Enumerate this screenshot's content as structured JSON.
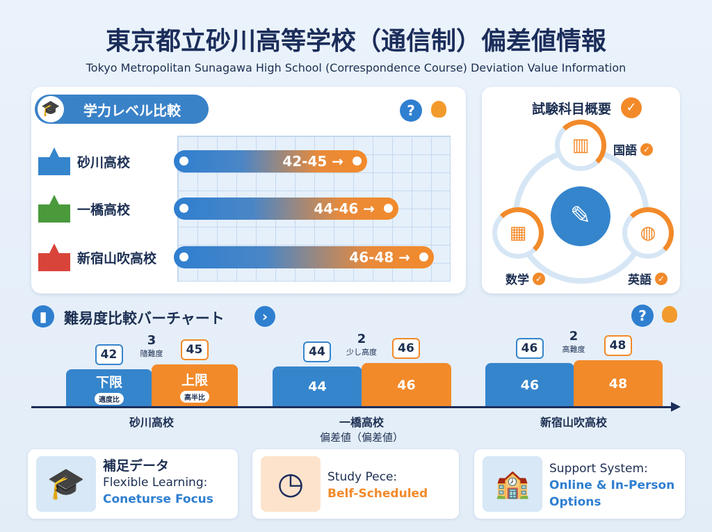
{
  "header": {
    "title": "東京都立砂川高等学校（通信制）偏差値情報",
    "subtitle": "Tokyo Metropolitan Sunagawa High School (Correspondence Course) Deviation Value Information"
  },
  "level_compare": {
    "title": "学力レベル比較",
    "help_icon": "question-icon",
    "tip_icon": "lightbulb-icon",
    "rows": [
      {
        "school": "砂川高校",
        "range": "42-45 →",
        "color": "#3585cc"
      },
      {
        "school": "一橋高校",
        "range": "44-46 →",
        "color": "#4a9a3c"
      },
      {
        "school": "新宿山吹高校",
        "range": "46-48 →",
        "color": "#d9443a"
      }
    ]
  },
  "subjects": {
    "title": "試験科目概要",
    "items": [
      {
        "name": "国語",
        "icon": "book-icon"
      },
      {
        "name": "数学",
        "icon": "calculator-icon"
      },
      {
        "name": "英語",
        "icon": "globe-icon"
      }
    ],
    "center_icon": "document-pen-icon"
  },
  "difficulty": {
    "title": "難易度比較バーチャート",
    "axis_label": "偏差値（偏差値）"
  },
  "chart_data": {
    "type": "bar",
    "categories": [
      "砂川高校",
      "一橋高校",
      "新宿山吹高校"
    ],
    "series": [
      {
        "name": "下限",
        "values": [
          42,
          44,
          46
        ],
        "color": "#3585cc"
      },
      {
        "name": "上限",
        "values": [
          45,
          46,
          48
        ],
        "color": "#f28a2a"
      }
    ],
    "bar_labels": [
      {
        "lower": "下限",
        "lower_tag": "適度比",
        "upper": "上限",
        "upper_tag": "高半比"
      },
      {
        "lower": "44",
        "upper": "46"
      },
      {
        "lower": "46",
        "upper": "48"
      }
    ],
    "differences": [
      {
        "value": "3",
        "label": "隨難度"
      },
      {
        "value": "2",
        "label": "少し高度"
      },
      {
        "value": "2",
        "label": "高難度"
      }
    ],
    "xlabel": "偏差値（偏差値）"
  },
  "cards": [
    {
      "title": "補足データ",
      "line1": "Flexible Learning:",
      "line2": "Coneturse Focus",
      "icon": "graduate-icon"
    },
    {
      "line1": "Study Pece:",
      "line2": "Belf-Scheduled",
      "icon": "clock-calendar-icon"
    },
    {
      "line1": "Support System:",
      "line2": "Online & In-Person",
      "line3": "Options",
      "icon": "school-computer-icon"
    }
  ]
}
